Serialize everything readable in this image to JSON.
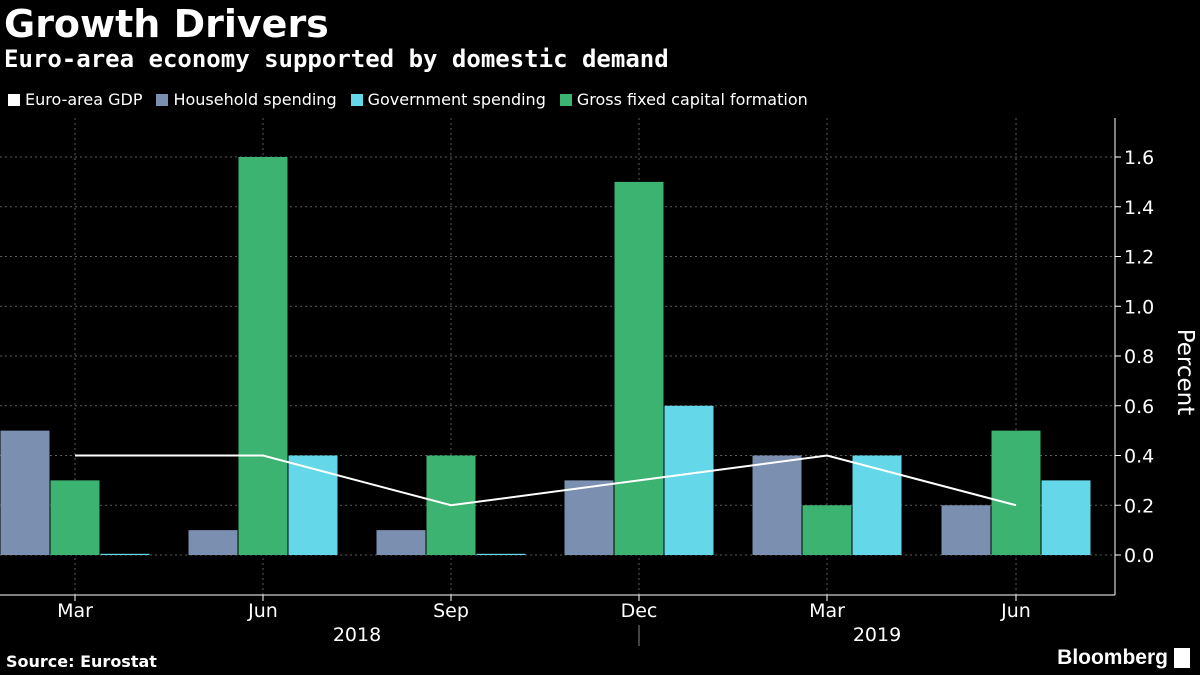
{
  "header": {
    "title": "Growth Drivers",
    "subtitle": "Euro-area economy supported by domestic demand"
  },
  "footer": {
    "source": "Source: Eurostat",
    "brand": "Bloomberg"
  },
  "colors": {
    "gdp": "#ffffff",
    "household": "#7b8fb0",
    "government": "#64d8e8",
    "gfcf": "#3cb371"
  },
  "chart_data": {
    "type": "bar",
    "categories": [
      "Mar",
      "Jun",
      "Sep",
      "Dec",
      "Mar",
      "Jun"
    ],
    "year_labels": [
      "2018",
      "2019"
    ],
    "series": [
      {
        "name": "Household spending",
        "values": [
          0.5,
          0.1,
          0.1,
          0.3,
          0.4,
          0.2
        ]
      },
      {
        "name": "Gross fixed capital formation",
        "values": [
          0.3,
          1.6,
          0.4,
          1.5,
          0.2,
          0.5
        ]
      },
      {
        "name": "Government spending",
        "values": [
          0.0,
          0.4,
          0.0,
          0.6,
          0.4,
          0.3
        ]
      }
    ],
    "line_series": {
      "name": "Euro-area GDP",
      "values": [
        0.4,
        0.4,
        0.2,
        0.3,
        0.4,
        0.2
      ]
    },
    "legend": [
      "Euro-area GDP",
      "Household spending",
      "Government spending",
      "Gross fixed capital formation"
    ],
    "ylabel": "Percent",
    "ylim": [
      -0.15,
      1.75
    ],
    "yticks": [
      "0.0",
      "0.2",
      "0.4",
      "0.6",
      "0.8",
      "1.0",
      "1.2",
      "1.4",
      "1.6"
    ],
    "grid": true,
    "legend_position": "top-left"
  }
}
